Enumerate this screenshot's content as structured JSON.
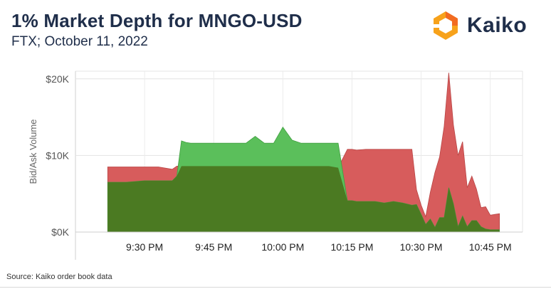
{
  "header": {
    "title": "1% Market Depth for MNGO-USD",
    "subtitle": "FTX; October 11, 2022"
  },
  "logo": {
    "text": "Kaiko",
    "icon": "kaiko-logo-icon",
    "colors": [
      "#f7a21b",
      "#f26b21"
    ]
  },
  "source": "Source: Kaiko order book data",
  "colors": {
    "ask": "#d75c5c",
    "bid": "#5bbf5b",
    "overlap": "#4b7a22"
  },
  "chart_data": {
    "type": "area",
    "title": "",
    "xlabel": "",
    "ylabel": "Bid/Ask Volume",
    "x_ticks": [
      "9:30 PM",
      "9:45 PM",
      "10:00 PM",
      "10:15 PM",
      "10:30 PM",
      "10:45 PM"
    ],
    "x_tick_minutes": [
      30,
      45,
      60,
      75,
      90,
      105
    ],
    "y_ticks": [
      "$0K",
      "$10K",
      "$20K"
    ],
    "y_tick_values": [
      0,
      10000,
      20000
    ],
    "ylim": [
      0,
      21000
    ],
    "grid": true,
    "x_minutes_after_9pm": [
      22,
      26,
      30,
      33,
      36,
      37,
      38,
      39,
      40,
      45,
      50,
      52,
      54,
      56,
      58,
      60,
      62,
      64,
      66,
      68,
      70,
      72,
      74,
      75,
      76,
      78,
      80,
      82,
      84,
      86,
      88,
      89,
      90,
      91,
      92,
      93,
      94,
      95,
      96,
      97,
      98,
      99,
      100,
      101,
      102,
      103,
      104,
      105,
      106,
      107
    ],
    "series": [
      {
        "name": "Ask",
        "color": "#d75c5c",
        "values": [
          8500,
          8500,
          8500,
          8500,
          8200,
          8600,
          8600,
          8600,
          8600,
          8600,
          8600,
          8600,
          8600,
          8600,
          8600,
          8600,
          8600,
          8600,
          8600,
          8600,
          8600,
          8400,
          10800,
          10800,
          10700,
          10800,
          10800,
          10800,
          10800,
          10800,
          10800,
          5500,
          3500,
          2000,
          5200,
          7800,
          9800,
          13800,
          20800,
          14000,
          10000,
          11800,
          5800,
          7300,
          5600,
          3200,
          3300,
          2200,
          2300,
          2400
        ]
      },
      {
        "name": "Bid",
        "color": "#5bbf5b",
        "values": [
          6500,
          6500,
          6700,
          6700,
          6700,
          7300,
          11900,
          11700,
          11600,
          11600,
          11600,
          11600,
          12500,
          11600,
          11600,
          13700,
          12000,
          11600,
          11600,
          11600,
          11600,
          11600,
          4100,
          4100,
          4000,
          4000,
          4000,
          3800,
          4000,
          3800,
          3500,
          3600,
          2300,
          1000,
          1700,
          600,
          1900,
          1900,
          5800,
          3700,
          700,
          2100,
          700,
          1500,
          1500,
          700,
          400,
          300,
          300,
          300
        ]
      }
    ]
  }
}
